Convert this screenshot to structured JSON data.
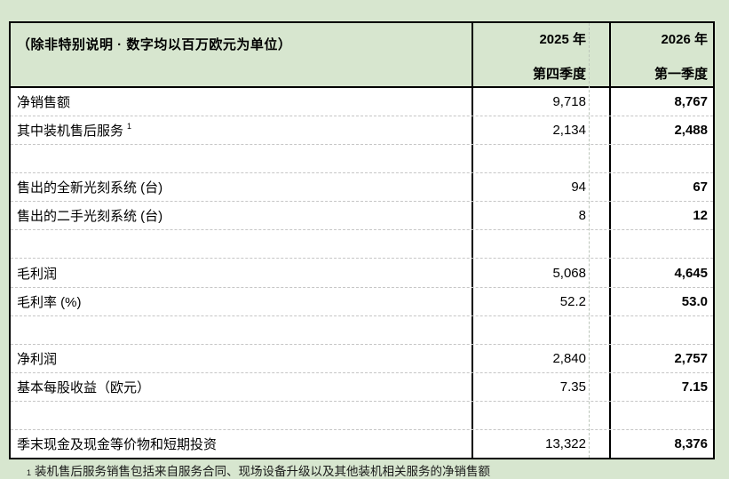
{
  "colors": {
    "page_background": "#d7e6cf",
    "table_background": "#ffffff",
    "header_background": "#d7e6cf",
    "border": "#000000",
    "gridline_dashed": "#c6c6c6",
    "text": "#000000"
  },
  "header": {
    "unit_note": "（除非特别说明 · 数字均以百万欧元为单位）",
    "col_2025": {
      "line1": "2025 年",
      "line2": "第四季度"
    },
    "col_2026": {
      "line1": "2026 年",
      "line2": "第一季度"
    }
  },
  "rows": [
    {
      "label": "净销售额",
      "sup": "",
      "v2025q4": "9,718",
      "v2026q1": "8,767"
    },
    {
      "label": "其中装机售后服务",
      "sup": "1",
      "v2025q4": "2,134",
      "v2026q1": "2,488"
    },
    {
      "label": "",
      "sup": "",
      "v2025q4": "",
      "v2026q1": ""
    },
    {
      "label": "售出的全新光刻系统 (台)",
      "sup": "",
      "v2025q4": "94",
      "v2026q1": "67"
    },
    {
      "label": "售出的二手光刻系统 (台)",
      "sup": "",
      "v2025q4": "8",
      "v2026q1": "12"
    },
    {
      "label": "",
      "sup": "",
      "v2025q4": "",
      "v2026q1": ""
    },
    {
      "label": "毛利润",
      "sup": "",
      "v2025q4": "5,068",
      "v2026q1": "4,645"
    },
    {
      "label": "毛利率 (%)",
      "sup": "",
      "v2025q4": "52.2",
      "v2026q1": "53.0"
    },
    {
      "label": "",
      "sup": "",
      "v2025q4": "",
      "v2026q1": ""
    },
    {
      "label": "净利润",
      "sup": "",
      "v2025q4": "2,840",
      "v2026q1": "2,757"
    },
    {
      "label": "基本每股收益（欧元）",
      "sup": "",
      "v2025q4": "7.35",
      "v2026q1": "7.15"
    },
    {
      "label": "",
      "sup": "",
      "v2025q4": "",
      "v2026q1": ""
    },
    {
      "label": "季末现金及现金等价物和短期投资",
      "sup": "",
      "v2025q4": "13,322",
      "v2026q1": "8,376"
    }
  ],
  "footnote": {
    "marker": "1",
    "text_fragment": "装机售后服务销售包括来自服务合同、现场设备升级以及其他装机相关服务的净销售额"
  }
}
